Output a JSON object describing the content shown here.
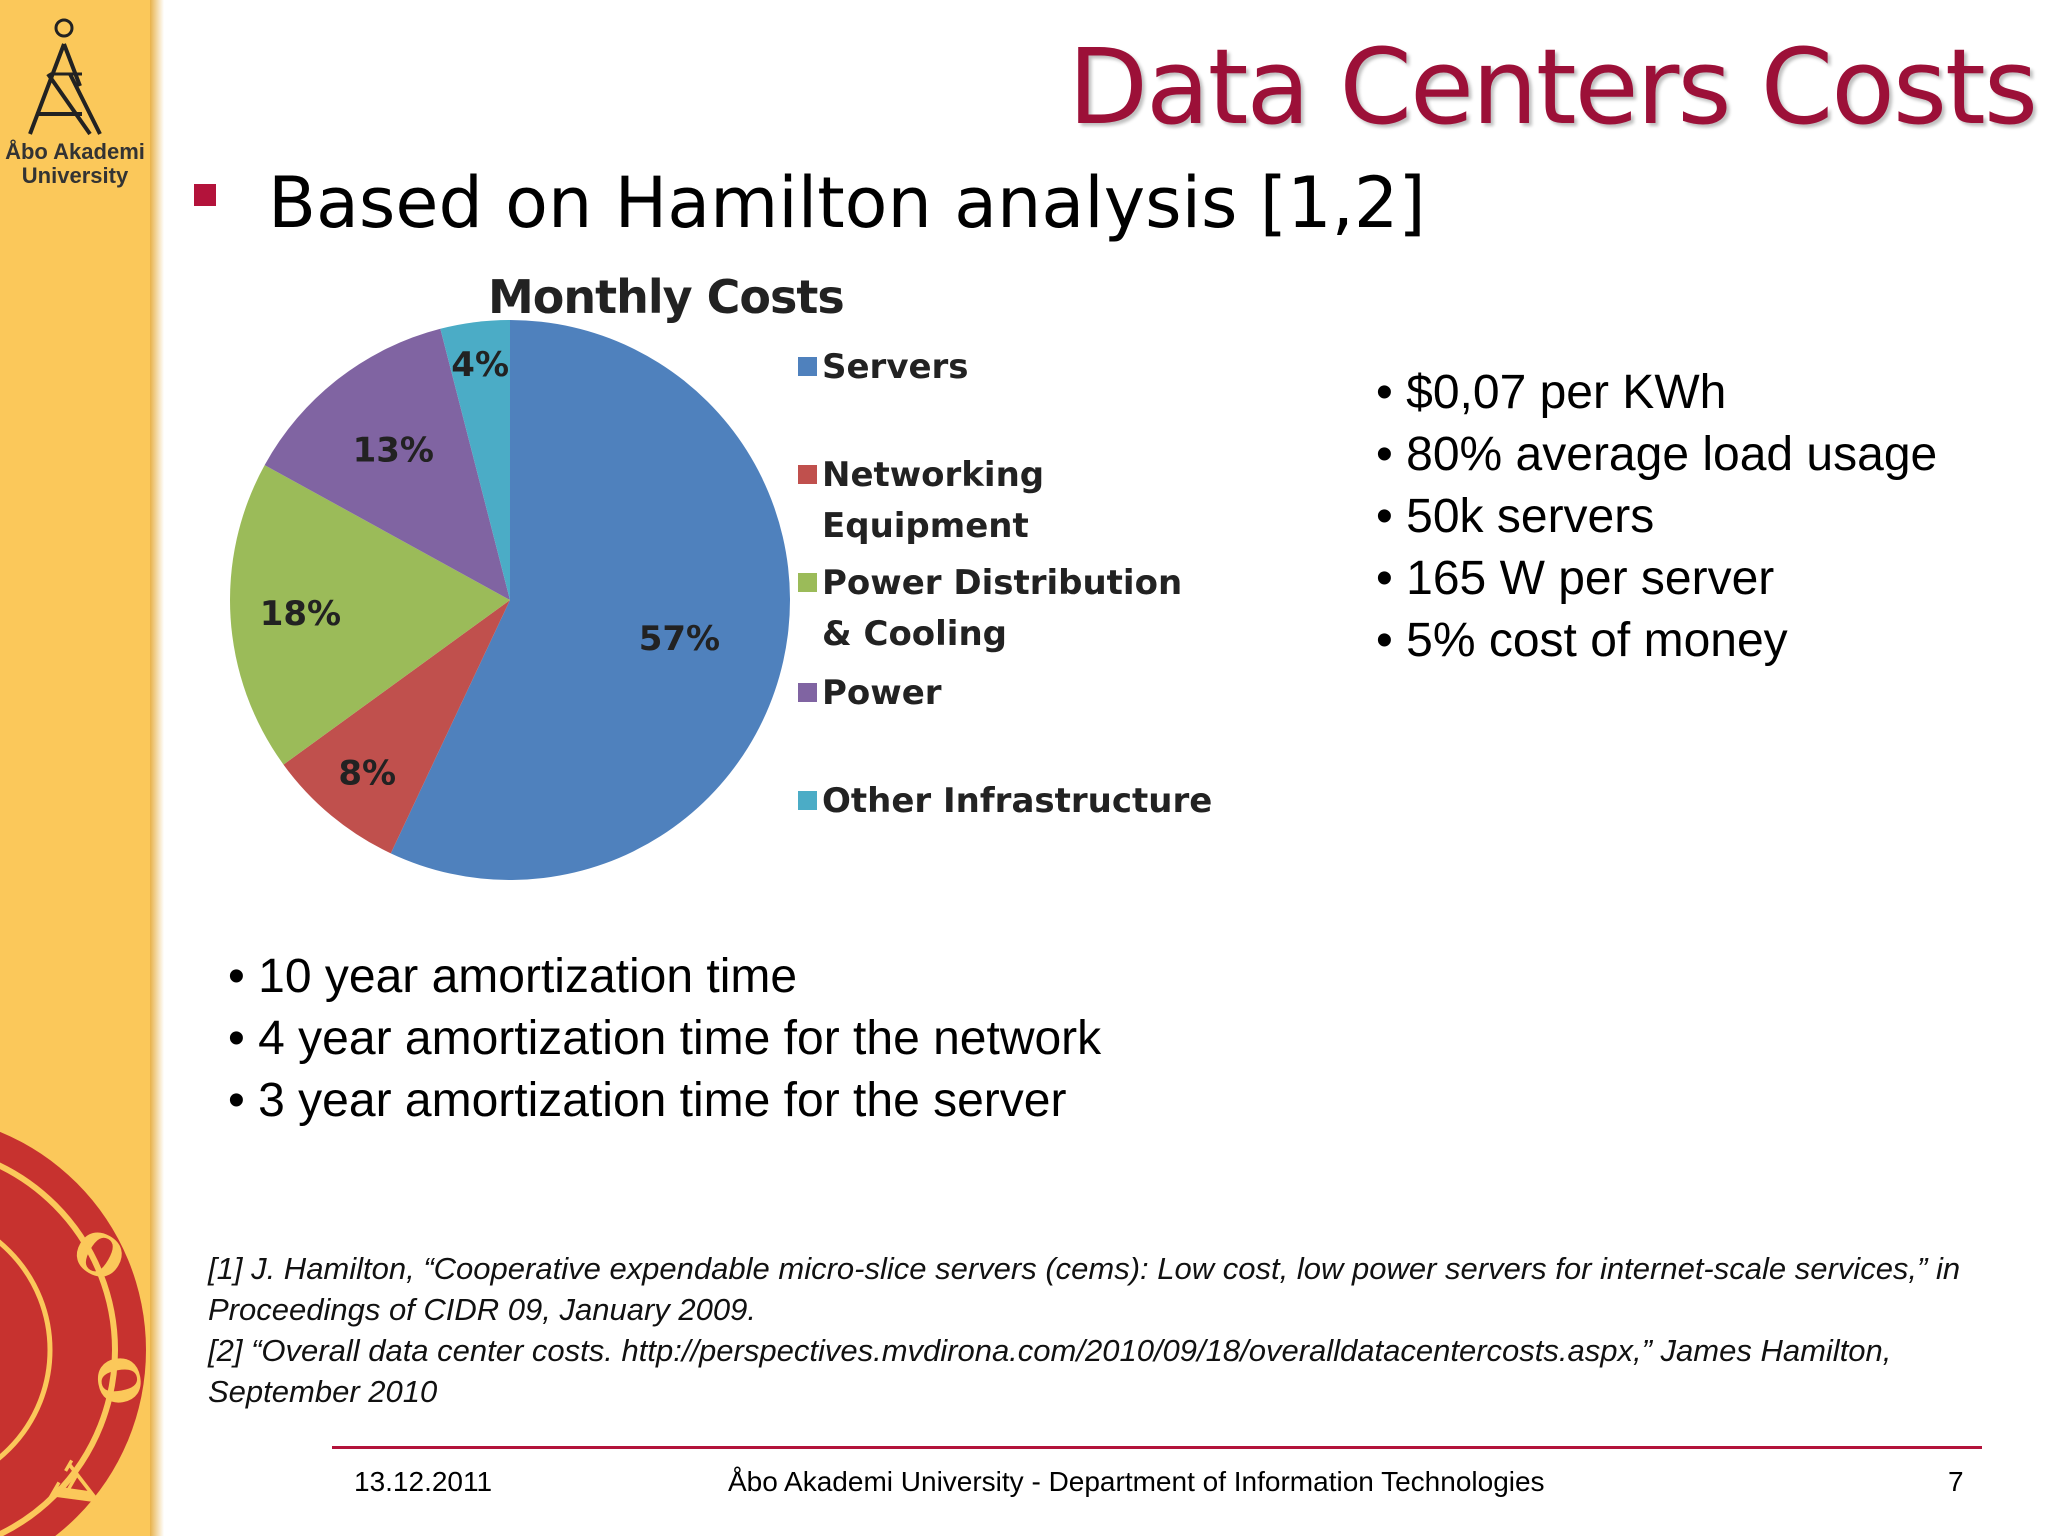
{
  "logo": {
    "line1": "Åbo Akademi",
    "line2": "University"
  },
  "slide": {
    "title": "Data Centers Costs",
    "main_bullet": "Based on Hamilton analysis [1,2]",
    "right_notes": [
      "• $0,07 per KWh",
      "• 80% average load usage",
      "• 50k servers",
      "• 165 W per server",
      "• 5% cost of money"
    ],
    "bottom_notes": [
      "• 10 year amortization time",
      "• 4 year amortization time for the network",
      "• 3 year amortization time for the server"
    ],
    "references": [
      "[1] J. Hamilton, “Cooperative expendable micro-slice servers (cems): Low cost, low power servers for internet-scale services,” in Proceedings of CIDR 09, January 2009.",
      "[2] “Overall data center costs. http://perspectives.mvdirona.com/2010/09/18/overalldatacentercosts.aspx,” James Hamilton, September 2010"
    ]
  },
  "footer": {
    "date": "13.12.2011",
    "org": "Åbo Akademi University - Department of Information Technologies",
    "page": "7"
  },
  "chart_data": {
    "type": "pie",
    "title": "Monthly Costs",
    "legend_position": "right",
    "categories": [
      "Servers",
      "Networking Equipment",
      "Power Distribution & Cooling",
      "Power",
      "Other Infrastructure"
    ],
    "legend_labels": [
      [
        "Servers"
      ],
      [
        "Networking",
        "Equipment"
      ],
      [
        "Power Distribution",
        "& Cooling"
      ],
      [
        "Power"
      ],
      [
        "Other Infrastructure"
      ]
    ],
    "values": [
      57,
      8,
      18,
      13,
      4
    ],
    "labels": [
      "57%",
      "8%",
      "18%",
      "13%",
      "4%"
    ],
    "colors": [
      "#4f81bd",
      "#c0504d",
      "#9bbb59",
      "#8064a2",
      "#4bacc6"
    ]
  },
  "colors": {
    "accent": "#9c1038",
    "sidebar": "#fbc85a"
  }
}
